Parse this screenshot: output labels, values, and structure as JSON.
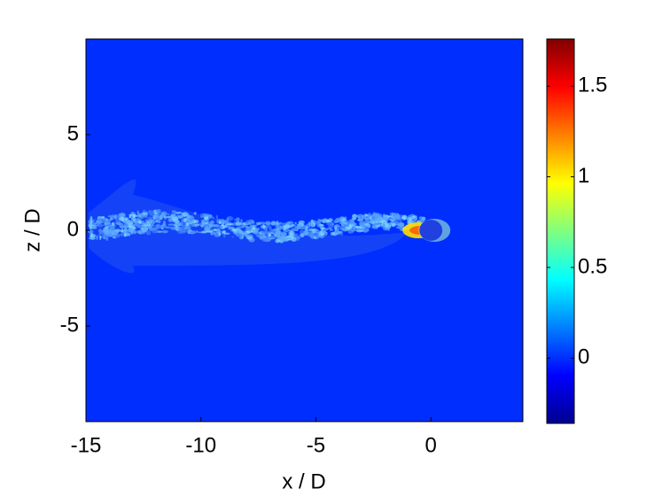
{
  "chart_data": {
    "type": "contour",
    "xlabel": "x / D",
    "ylabel": "z / D",
    "xlim": [
      -15,
      4
    ],
    "ylim": [
      -10,
      10
    ],
    "xticks": [
      -15,
      -10,
      -5,
      0
    ],
    "yticks": [
      -5,
      0,
      5
    ],
    "background_value": 0,
    "cylinder": {
      "x": 0,
      "z": 0,
      "diameter": 1
    },
    "colorbar": {
      "clim": [
        -0.36,
        1.76
      ],
      "ticks": [
        0,
        0.5,
        1,
        1.5
      ],
      "colormap": [
        "#00008f",
        "#0000ff",
        "#0080ff",
        "#00ffff",
        "#80ff80",
        "#ffff00",
        "#ff8000",
        "#ff0000",
        "#800000"
      ]
    }
  }
}
